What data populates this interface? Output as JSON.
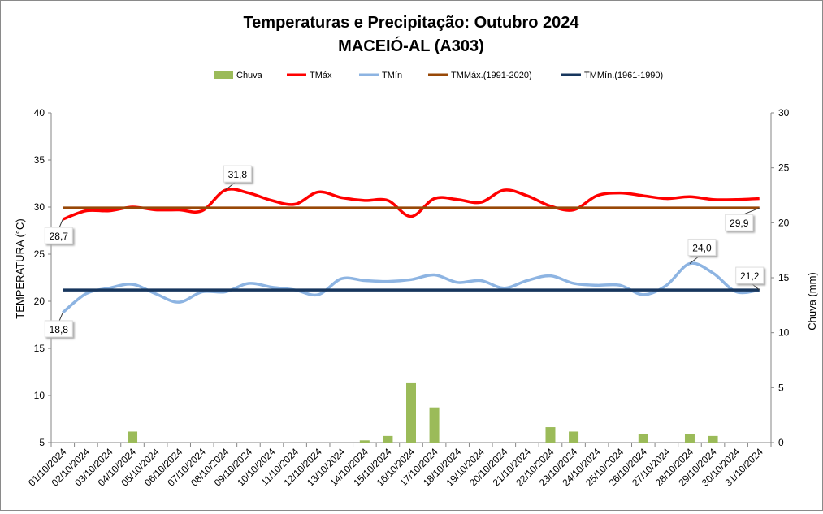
{
  "chart_data": {
    "type": "bar+line",
    "title": "Temperaturas e Precipitação: Outubro 2024",
    "subtitle": "MACEIÓ-AL (A303)",
    "ylabel": "TEMPERATURA (°C)",
    "y2label": "Chuva (mm)",
    "ylim": [
      5,
      40
    ],
    "y2lim": [
      0,
      30
    ],
    "yticks": [
      "5",
      "10",
      "15",
      "20",
      "25",
      "30",
      "35",
      "40"
    ],
    "y2ticks": [
      "0",
      "5",
      "10",
      "15",
      "20",
      "25",
      "30"
    ],
    "legend_position": "top",
    "categories": [
      "01/10/2024",
      "02/10/2024",
      "03/10/2024",
      "04/10/2024",
      "05/10/2024",
      "06/10/2024",
      "07/10/2024",
      "08/10/2024",
      "09/10/2024",
      "10/10/2024",
      "11/10/2024",
      "12/10/2024",
      "13/10/2024",
      "14/10/2024",
      "15/10/2024",
      "16/10/2024",
      "17/10/2024",
      "18/10/2024",
      "19/10/2024",
      "20/10/2024",
      "21/10/2024",
      "22/10/2024",
      "23/10/2024",
      "24/10/2024",
      "25/10/2024",
      "26/10/2024",
      "27/10/2024",
      "28/10/2024",
      "29/10/2024",
      "30/10/2024",
      "31/10/2024"
    ],
    "series": [
      {
        "name": "Chuva",
        "type": "bar",
        "axis": "right",
        "color": "#9bbb59",
        "values": [
          0,
          0,
          0,
          1.0,
          0,
          0,
          0,
          0,
          0,
          0,
          0,
          0,
          0,
          0.2,
          0.6,
          5.4,
          3.2,
          0,
          0,
          0,
          0,
          1.4,
          1.0,
          0,
          0,
          0.8,
          0,
          0.8,
          0.6,
          0,
          0
        ]
      },
      {
        "name": "TMáx",
        "type": "line",
        "axis": "left",
        "color": "#ff0000",
        "values": [
          28.7,
          29.6,
          29.6,
          30.0,
          29.7,
          29.7,
          29.6,
          31.8,
          31.5,
          30.7,
          30.3,
          31.6,
          31.0,
          30.7,
          30.7,
          29.0,
          30.9,
          30.8,
          30.5,
          31.8,
          31.2,
          30.1,
          29.7,
          31.2,
          31.5,
          31.2,
          30.9,
          31.1,
          30.8,
          30.8,
          30.9
        ]
      },
      {
        "name": "TMín",
        "type": "line",
        "axis": "left",
        "color": "#8db4e2",
        "values": [
          18.8,
          20.8,
          21.4,
          21.8,
          20.8,
          19.9,
          21.0,
          21.0,
          21.9,
          21.5,
          21.2,
          20.7,
          22.4,
          22.2,
          22.1,
          22.3,
          22.8,
          22.0,
          22.2,
          21.4,
          22.2,
          22.7,
          21.9,
          21.7,
          21.7,
          20.7,
          21.7,
          24.0,
          23.0,
          21.0,
          21.2
        ]
      },
      {
        "name": "TMMáx.(1991-2020)",
        "type": "line",
        "axis": "left",
        "color": "#984807",
        "values": [
          29.9,
          29.9,
          29.9,
          29.9,
          29.9,
          29.9,
          29.9,
          29.9,
          29.9,
          29.9,
          29.9,
          29.9,
          29.9,
          29.9,
          29.9,
          29.9,
          29.9,
          29.9,
          29.9,
          29.9,
          29.9,
          29.9,
          29.9,
          29.9,
          29.9,
          29.9,
          29.9,
          29.9,
          29.9,
          29.9,
          29.9
        ]
      },
      {
        "name": "TMMín.(1961-1990)",
        "type": "line",
        "axis": "left",
        "color": "#17365d",
        "values": [
          21.2,
          21.2,
          21.2,
          21.2,
          21.2,
          21.2,
          21.2,
          21.2,
          21.2,
          21.2,
          21.2,
          21.2,
          21.2,
          21.2,
          21.2,
          21.2,
          21.2,
          21.2,
          21.2,
          21.2,
          21.2,
          21.2,
          21.2,
          21.2,
          21.2,
          21.2,
          21.2,
          21.2,
          21.2,
          21.2,
          21.2
        ]
      }
    ],
    "annotations": [
      {
        "series": "TMáx",
        "index": 0,
        "text": "28,7"
      },
      {
        "series": "TMáx",
        "index": 7,
        "text": "31,8"
      },
      {
        "series": "TMMáx.(1991-2020)",
        "index": 30,
        "text": "29,9"
      },
      {
        "series": "TMín",
        "index": 0,
        "text": "18,8"
      },
      {
        "series": "TMín",
        "index": 27,
        "text": "24,0"
      },
      {
        "series": "TMMín.(1961-1990)",
        "index": 30,
        "text": "21,2"
      }
    ]
  }
}
